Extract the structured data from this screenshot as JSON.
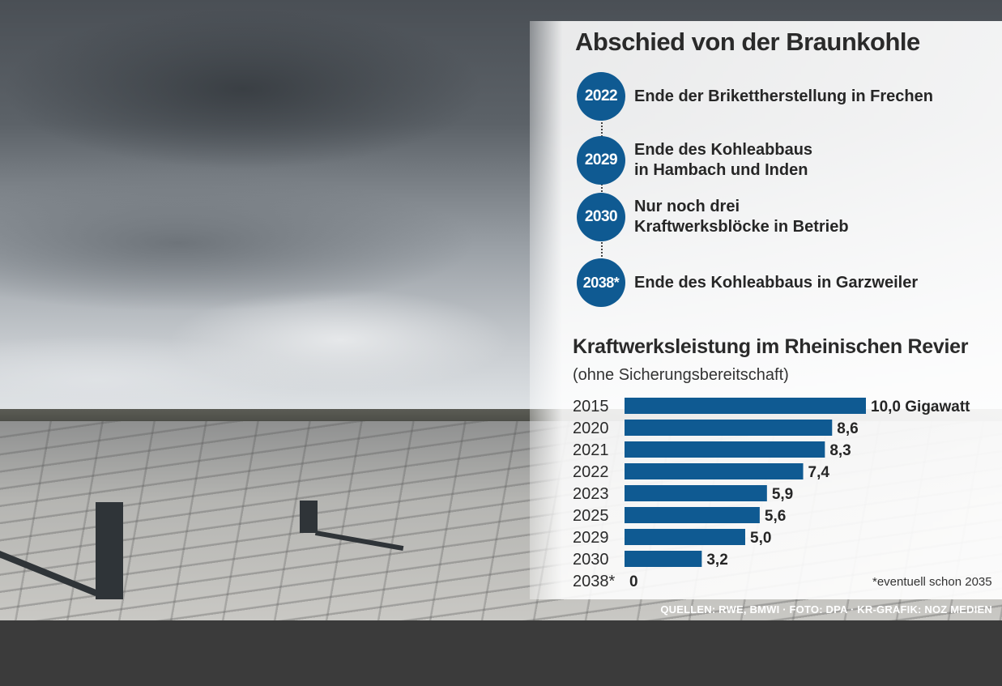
{
  "title": "Abschied von der Braunkohle",
  "timeline": [
    {
      "year": "2022",
      "text": "Ende der Brikettherstellung in Frechen"
    },
    {
      "year": "2029",
      "text": "Ende des Kohleabbaus\nin Hambach und Inden"
    },
    {
      "year": "2030",
      "text": "Nur noch drei\nKraftwerksblöcke in Betrieb"
    },
    {
      "year": "2038*",
      "text": "Ende des Kohleabbaus in Garzweiler"
    }
  ],
  "chart_data": {
    "type": "bar",
    "orientation": "horizontal",
    "title": "Kraftwerksleistung im Rheinischen Revier",
    "subtitle": "(ohne Sicherungsbereitschaft)",
    "categories": [
      "2015",
      "2020",
      "2021",
      "2022",
      "2023",
      "2025",
      "2029",
      "2030",
      "2038*"
    ],
    "values": [
      10.0,
      8.6,
      8.3,
      7.4,
      5.9,
      5.6,
      5.0,
      3.2,
      0
    ],
    "value_labels": [
      "10,0 Gigawatt",
      "8,6",
      "8,3",
      "7,4",
      "5,9",
      "5,6",
      "5,0",
      "3,2",
      "0"
    ],
    "unit": "Gigawatt",
    "bar_color": "#0f5a92",
    "grid": false,
    "legend": "none"
  },
  "footnote": "*eventuell schon 2035",
  "sources": "QUELLEN: RWE, BMWI · FOTO: DPA · KR-GRAFIK: NOZ MEDIEN",
  "colors": {
    "accent": "#0f5a92",
    "background": "#3b3b3b"
  }
}
